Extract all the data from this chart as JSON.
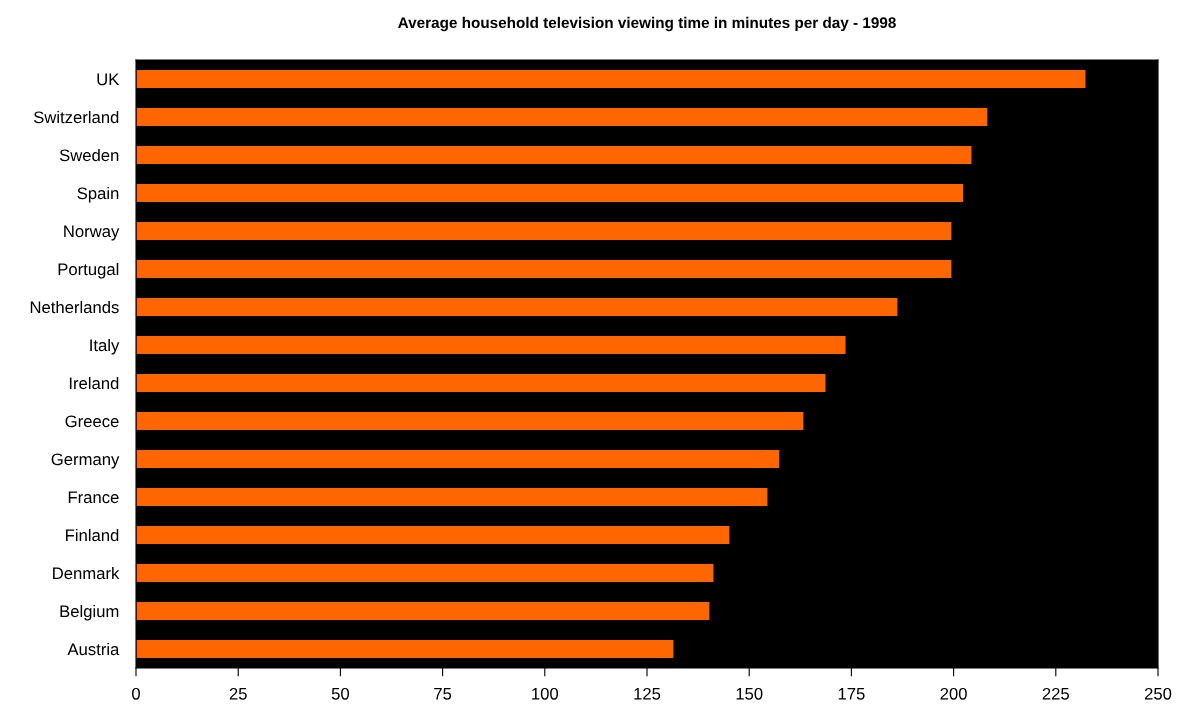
{
  "chart_data": {
    "type": "bar",
    "orientation": "horizontal",
    "title": "Average household television viewing time in minutes per day - 1998",
    "categories": [
      "UK",
      "Switzerland",
      "Sweden",
      "Spain",
      "Norway",
      "Portugal",
      "Netherlands",
      "Italy",
      "Ireland",
      "Greece",
      "Germany",
      "France",
      "Finland",
      "Denmark",
      "Belgium",
      "Austria"
    ],
    "values": [
      232.4,
      208.4,
      204.5,
      202.5,
      199.6,
      199.6,
      186.4,
      173.7,
      168.8,
      163.4,
      157.5,
      154.6,
      145.3,
      141.4,
      140.4,
      131.6
    ],
    "color": "#ff6600",
    "xlim": [
      0,
      250
    ],
    "xticks": [
      0,
      25,
      50,
      75,
      100,
      125,
      150,
      175,
      200,
      225,
      250
    ],
    "grid": false,
    "legend": false
  }
}
